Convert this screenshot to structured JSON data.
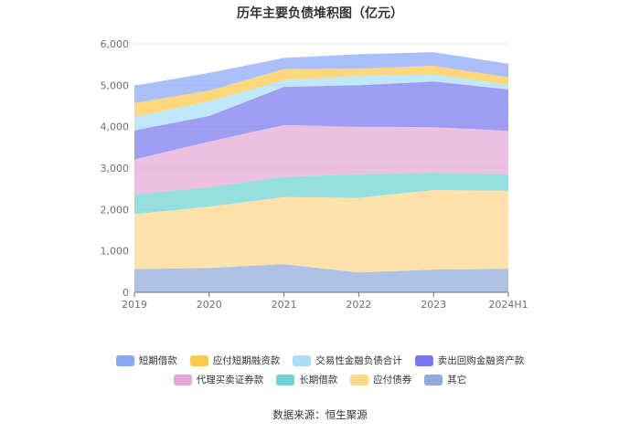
{
  "chart_data": {
    "type": "area",
    "stacked": true,
    "title": "历年主要负债堆积图（亿元）",
    "categories": [
      "2019",
      "2020",
      "2021",
      "2022",
      "2023",
      "2024H1"
    ],
    "ylim": [
      0,
      6000
    ],
    "yticks": [
      0,
      1000,
      2000,
      3000,
      4000,
      5000,
      6000
    ],
    "ytick_labels": [
      "0",
      "1,000",
      "2,000",
      "3,000",
      "4,000",
      "5,000",
      "6,000"
    ],
    "series": [
      {
        "name": "其它",
        "color": "#8faadc",
        "values": [
          560,
          590,
          680,
          480,
          550,
          570
        ]
      },
      {
        "name": "应付债券",
        "color": "#ffd78a",
        "values": [
          1330,
          1480,
          1620,
          1800,
          1920,
          1880
        ]
      },
      {
        "name": "长期借款",
        "color": "#6ed3d3",
        "values": [
          470,
          470,
          490,
          570,
          420,
          400
        ]
      },
      {
        "name": "代理买卖证券款",
        "color": "#e4a8d4",
        "values": [
          850,
          1100,
          1250,
          1150,
          1100,
          1050
        ]
      },
      {
        "name": "卖出回购金融资产款",
        "color": "#7878f0",
        "values": [
          700,
          620,
          920,
          1000,
          1100,
          1000
        ]
      },
      {
        "name": "交易性金融负债合计",
        "color": "#a8def8",
        "values": [
          330,
          350,
          170,
          230,
          180,
          110
        ]
      },
      {
        "name": "应付短期融资款",
        "color": "#ffc94a",
        "values": [
          330,
          260,
          260,
          170,
          200,
          180
        ]
      },
      {
        "name": "短期借款",
        "color": "#8ba8f8",
        "values": [
          420,
          430,
          270,
          350,
          330,
          330
        ]
      }
    ],
    "legend_order": [
      "短期借款",
      "应付短期融资款",
      "交易性金融负债合计",
      "卖出回购金融资产款",
      "代理买卖证券款",
      "长期借款",
      "应付债券",
      "其它"
    ],
    "legend_position": "bottom",
    "grid": true
  },
  "source": "数据来源：恒生聚源"
}
